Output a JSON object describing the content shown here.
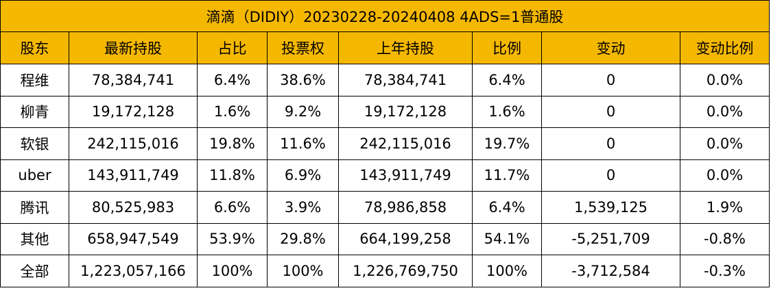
{
  "table": {
    "title": "滴滴（DIDIY）20230228-20240408 4ADS=1普通股",
    "headers": [
      "股东",
      "最新持股",
      "占比",
      "投票权",
      "上年持股",
      "比例",
      "变动",
      "变动比例"
    ],
    "rows": [
      [
        "程维",
        "78,384,741",
        "6.4%",
        "38.6%",
        "78,384,741",
        "6.4%",
        "0",
        "0.0%"
      ],
      [
        "柳青",
        "19,172,128",
        "1.6%",
        "9.2%",
        "19,172,128",
        "1.6%",
        "0",
        "0.0%"
      ],
      [
        "软银",
        "242,115,016",
        "19.8%",
        "11.6%",
        "242,115,016",
        "19.7%",
        "0",
        "0.0%"
      ],
      [
        "uber",
        "143,911,749",
        "11.8%",
        "6.9%",
        "143,911,749",
        "11.7%",
        "0",
        "0.0%"
      ],
      [
        "腾讯",
        "80,525,983",
        "6.6%",
        "3.9%",
        "78,986,858",
        "6.4%",
        "1,539,125",
        "1.9%"
      ],
      [
        "其他",
        "658,947,549",
        "53.9%",
        "29.8%",
        "664,199,258",
        "54.1%",
        "-5,251,709",
        "-0.8%"
      ],
      [
        "全部",
        "1,223,057,166",
        "100%",
        "100%",
        "1,226,769,750",
        "100%",
        "-3,712,584",
        "-0.3%"
      ]
    ]
  },
  "colors": {
    "header_background": "#f5b800",
    "border": "#000000",
    "cell_background": "#ffffff"
  }
}
